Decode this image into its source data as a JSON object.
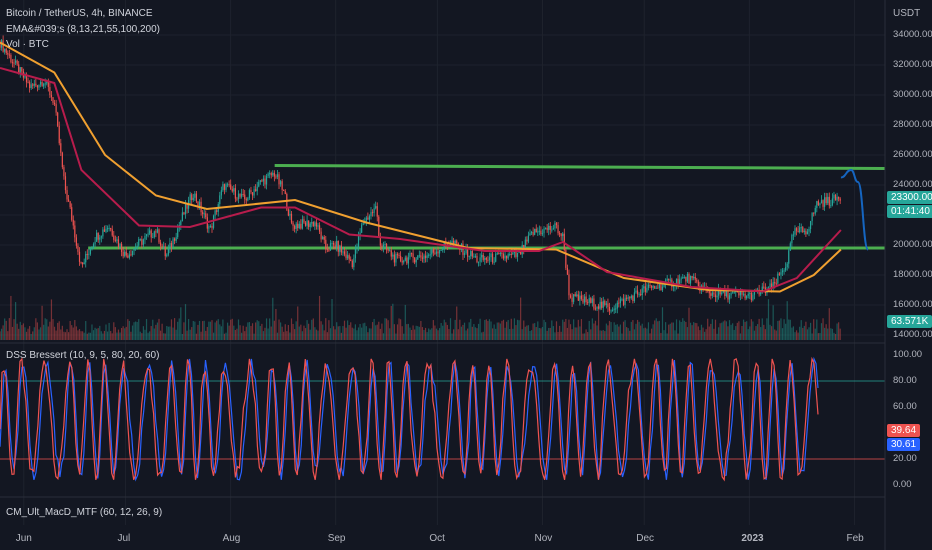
{
  "header": {
    "symbol_line": "Bitcoin / TetherUS, 4h, BINANCE",
    "ema_line": "EMA&#039;s (8,13,21,55,100,200)",
    "vol_line": "Vol · BTC"
  },
  "panes": {
    "dss_title": "DSS Bressert (10, 9, 5, 80, 20, 60)",
    "macd_title": "CM_Ult_MacD_MTF (60, 12, 26, 9)"
  },
  "price_axis": {
    "unit": "USDT",
    "ticks": [
      "34000.00",
      "32000.00",
      "30000.00",
      "28000.00",
      "26000.00",
      "24000.00",
      "22000.00",
      "20000.00",
      "18000.00",
      "16000.00",
      "14000.00"
    ]
  },
  "osc_axis": {
    "ticks": [
      "100.00",
      "80.00",
      "60.00",
      "20.00",
      "0.00"
    ]
  },
  "time_axis": {
    "ticks": [
      "Jun",
      "Jul",
      "Aug",
      "Sep",
      "Oct",
      "Nov",
      "Dec",
      "2023",
      "Feb"
    ]
  },
  "tags": {
    "price": "23300.00",
    "countdown": "01:41:40",
    "volume": "63.571K",
    "dss_k": "39.64",
    "dss_d": "30.61"
  },
  "colors": {
    "background": "#131722",
    "up": "#26a69a",
    "down": "#ef5350",
    "ema_fast": "#b71c4c",
    "ema_slow": "#f0a030",
    "level_line": "#4caf50",
    "projection": "#1565c0",
    "dss_k": "#ef5350",
    "dss_d": "#2962ff"
  },
  "chart_data": {
    "type": "line",
    "title": "Bitcoin / TetherUS, 4h, BINANCE",
    "y_unit": "USDT",
    "ylim": [
      14000,
      35000
    ],
    "x_range": [
      "2022-05-25",
      "2023-02-10"
    ],
    "price_path": [
      {
        "x": "2022-05-25",
        "y": 33500
      },
      {
        "x": "2022-05-31",
        "y": 31500
      },
      {
        "x": "2022-06-03",
        "y": 30500
      },
      {
        "x": "2022-06-07",
        "y": 31000
      },
      {
        "x": "2022-06-10",
        "y": 29500
      },
      {
        "x": "2022-06-13",
        "y": 24000
      },
      {
        "x": "2022-06-15",
        "y": 22000
      },
      {
        "x": "2022-06-18",
        "y": 18500
      },
      {
        "x": "2022-06-22",
        "y": 20500
      },
      {
        "x": "2022-06-26",
        "y": 21300
      },
      {
        "x": "2022-07-01",
        "y": 19300
      },
      {
        "x": "2022-07-06",
        "y": 20300
      },
      {
        "x": "2022-07-10",
        "y": 21000
      },
      {
        "x": "2022-07-13",
        "y": 19200
      },
      {
        "x": "2022-07-18",
        "y": 22000
      },
      {
        "x": "2022-07-21",
        "y": 23500
      },
      {
        "x": "2022-07-26",
        "y": 21000
      },
      {
        "x": "2022-07-30",
        "y": 24000
      },
      {
        "x": "2022-08-05",
        "y": 23000
      },
      {
        "x": "2022-08-10",
        "y": 24200
      },
      {
        "x": "2022-08-14",
        "y": 24800
      },
      {
        "x": "2022-08-17",
        "y": 23300
      },
      {
        "x": "2022-08-19",
        "y": 21300
      },
      {
        "x": "2022-08-26",
        "y": 21500
      },
      {
        "x": "2022-08-29",
        "y": 19800
      },
      {
        "x": "2022-09-01",
        "y": 20000
      },
      {
        "x": "2022-09-06",
        "y": 18800
      },
      {
        "x": "2022-09-09",
        "y": 21500
      },
      {
        "x": "2022-09-13",
        "y": 22500
      },
      {
        "x": "2022-09-14",
        "y": 20100
      },
      {
        "x": "2022-09-19",
        "y": 19000
      },
      {
        "x": "2022-09-28",
        "y": 19300
      },
      {
        "x": "2022-10-05",
        "y": 20200
      },
      {
        "x": "2022-10-13",
        "y": 19000
      },
      {
        "x": "2022-10-20",
        "y": 19200
      },
      {
        "x": "2022-10-25",
        "y": 19300
      },
      {
        "x": "2022-10-29",
        "y": 20800
      },
      {
        "x": "2022-11-05",
        "y": 21200
      },
      {
        "x": "2022-11-07",
        "y": 20500
      },
      {
        "x": "2022-11-09",
        "y": 16500
      },
      {
        "x": "2022-11-13",
        "y": 16300
      },
      {
        "x": "2022-11-21",
        "y": 15800
      },
      {
        "x": "2022-12-01",
        "y": 17000
      },
      {
        "x": "2022-12-14",
        "y": 17800
      },
      {
        "x": "2022-12-20",
        "y": 16800
      },
      {
        "x": "2023-01-01",
        "y": 16600
      },
      {
        "x": "2023-01-08",
        "y": 17200
      },
      {
        "x": "2023-01-12",
        "y": 18800
      },
      {
        "x": "2023-01-14",
        "y": 20800
      },
      {
        "x": "2023-01-18",
        "y": 21000
      },
      {
        "x": "2023-01-21",
        "y": 22800
      },
      {
        "x": "2023-01-26",
        "y": 23000
      },
      {
        "x": "2023-01-28",
        "y": 23300
      }
    ],
    "ema_fast_path": [
      {
        "x": "2022-05-25",
        "y": 31800
      },
      {
        "x": "2022-06-10",
        "y": 30800
      },
      {
        "x": "2022-06-18",
        "y": 25000
      },
      {
        "x": "2022-07-05",
        "y": 21300
      },
      {
        "x": "2022-07-20",
        "y": 21200
      },
      {
        "x": "2022-08-10",
        "y": 22500
      },
      {
        "x": "2022-08-20",
        "y": 22500
      },
      {
        "x": "2022-09-05",
        "y": 20700
      },
      {
        "x": "2022-09-20",
        "y": 20400
      },
      {
        "x": "2022-10-15",
        "y": 19600
      },
      {
        "x": "2022-10-31",
        "y": 19600
      },
      {
        "x": "2022-11-07",
        "y": 20200
      },
      {
        "x": "2022-11-20",
        "y": 18200
      },
      {
        "x": "2022-12-15",
        "y": 17200
      },
      {
        "x": "2023-01-05",
        "y": 16900
      },
      {
        "x": "2023-01-15",
        "y": 17800
      },
      {
        "x": "2023-01-28",
        "y": 21000
      }
    ],
    "ema_slow_path": [
      {
        "x": "2022-05-25",
        "y": 33500
      },
      {
        "x": "2022-06-10",
        "y": 31500
      },
      {
        "x": "2022-06-25",
        "y": 26000
      },
      {
        "x": "2022-07-10",
        "y": 23300
      },
      {
        "x": "2022-07-25",
        "y": 22400
      },
      {
        "x": "2022-08-20",
        "y": 23000
      },
      {
        "x": "2022-09-10",
        "y": 21500
      },
      {
        "x": "2022-10-10",
        "y": 19800
      },
      {
        "x": "2022-11-05",
        "y": 19700
      },
      {
        "x": "2022-11-25",
        "y": 17800
      },
      {
        "x": "2022-12-20",
        "y": 17000
      },
      {
        "x": "2023-01-10",
        "y": 16900
      },
      {
        "x": "2023-01-20",
        "y": 18000
      },
      {
        "x": "2023-01-28",
        "y": 19700
      }
    ],
    "levels": [
      {
        "from": "2022-08-14",
        "to": "2023-02-10",
        "y1": 25300,
        "y2": 25100
      },
      {
        "from": "2022-06-20",
        "to": "2023-02-10",
        "y1": 19800,
        "y2": 19800
      }
    ],
    "projection_path": [
      {
        "x": "2023-01-28",
        "y": 24500
      },
      {
        "x": "2023-01-31",
        "y": 25000
      },
      {
        "x": "2023-02-02",
        "y": 24200
      },
      {
        "x": "2023-02-05",
        "y": 19700
      }
    ],
    "dss": {
      "ylim": [
        0,
        100
      ],
      "levels": [
        80,
        20
      ],
      "k_last": 39.64,
      "d_last": 30.61
    }
  }
}
